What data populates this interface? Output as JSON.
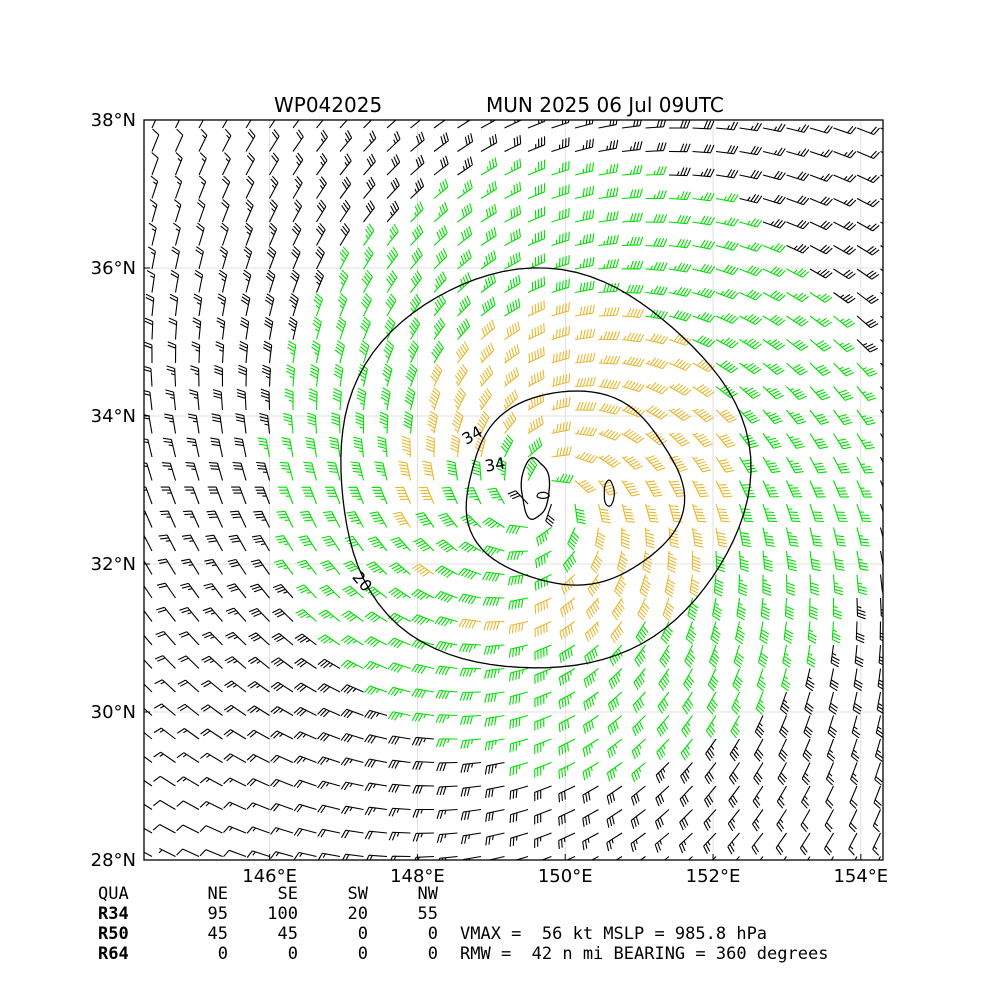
{
  "title_left": "WP042025",
  "title_right": "MUN 2025 06 Jul 09UTC",
  "chart_data": {
    "type": "wind_barbs_contour",
    "xlim": [
      144.3,
      154.3
    ],
    "ylim": [
      28,
      38
    ],
    "x_ticks": [
      146,
      148,
      150,
      152,
      154
    ],
    "x_tick_labels": [
      "146°E",
      "148°E",
      "150°E",
      "152°E",
      "154°E"
    ],
    "y_ticks": [
      28,
      30,
      32,
      34,
      36,
      38
    ],
    "y_tick_labels": [
      "28°N",
      "30°N",
      "32°N",
      "34°N",
      "36°N",
      "38°N"
    ],
    "grid": true,
    "center": {
      "lon": 149.7,
      "lat": 32.9
    },
    "contour_labels": [
      "34",
      "34",
      "20"
    ],
    "barb_colors": {
      "weak": "#000000",
      "gale": "#00e000",
      "storm": "#e8b830"
    },
    "contour_color": "#000000"
  },
  "table": {
    "headers": [
      "QUA",
      "NE",
      "SE",
      "SW",
      "NW"
    ],
    "rows": [
      {
        "label": "R34",
        "values": [
          "95",
          "100",
          "20",
          "55"
        ]
      },
      {
        "label": "R50",
        "values": [
          "45",
          "45",
          "0",
          "0"
        ]
      },
      {
        "label": "R64",
        "values": [
          "0",
          "0",
          "0",
          "0"
        ]
      }
    ]
  },
  "stats": {
    "line1": "VMAX =  56 kt MSLP = 985.8 hPa",
    "line2": "RMW =  42 n mi BEARING = 360 degrees"
  }
}
